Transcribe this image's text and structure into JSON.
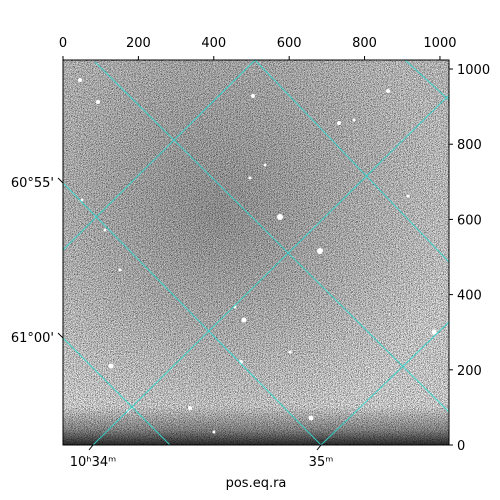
{
  "chart_data": {
    "type": "image",
    "xlim": [
      0,
      1024
    ],
    "ylim": [
      0,
      1024
    ],
    "xticks": [
      0,
      200,
      400,
      600,
      800,
      1000
    ],
    "yticks": [
      0,
      200,
      400,
      600,
      800,
      1000
    ],
    "xlabel": "pos.eq.ra",
    "ra_labels": [
      "10ʰ34ᵐ",
      "35ᵐ"
    ],
    "dec_labels": [
      "60°55'",
      "61°00'"
    ]
  }
}
